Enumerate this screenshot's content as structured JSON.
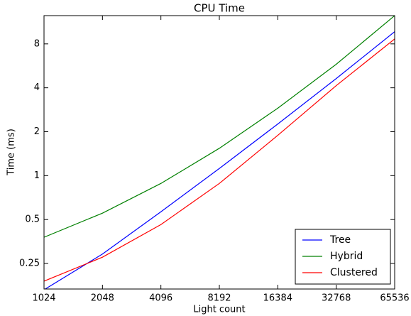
{
  "chart_data": {
    "type": "line",
    "title": "CPU Time",
    "x_label": "Light count",
    "y_label": "Time (ms)",
    "x": [
      1024,
      2048,
      4096,
      8192,
      16384,
      32768,
      65536
    ],
    "series": [
      {
        "name": "Tree",
        "color": "#0000ff",
        "values": [
          0.165,
          0.29,
          0.565,
          1.12,
          2.26,
          4.63,
          9.7
        ]
      },
      {
        "name": "Hybrid",
        "color": "#008000",
        "values": [
          0.378,
          0.553,
          0.884,
          1.54,
          2.9,
          5.8,
          12.5
        ]
      },
      {
        "name": "Clustered",
        "color": "#ff0000",
        "values": [
          0.189,
          0.276,
          0.462,
          0.884,
          1.89,
          4.14,
          8.65
        ]
      }
    ],
    "xlim": [
      1024,
      65536
    ],
    "xticks": [
      1024,
      2048,
      4096,
      8192,
      16384,
      32768,
      65536
    ],
    "ylim": [
      0.167,
      12.5
    ],
    "yticks": [
      0.25,
      0.5,
      1,
      2,
      4,
      8
    ],
    "xscale": "log",
    "yscale": "log",
    "legend": "lower right"
  }
}
